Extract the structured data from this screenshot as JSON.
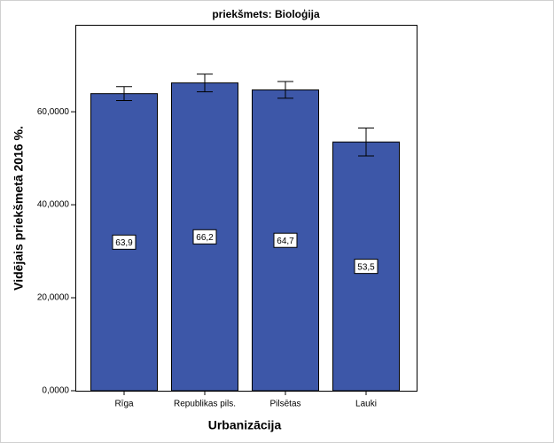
{
  "chart_data": {
    "type": "bar",
    "title": "priekšmets: Bioloģija",
    "x_label": "Urbanizācija",
    "y_label": "Vidējais priekšmetā 2016 %.",
    "categories": [
      "Rīga",
      "Republikas pils.",
      "Pilsētas",
      "Lauki"
    ],
    "values": [
      63.9,
      66.2,
      64.7,
      53.5
    ],
    "value_labels": [
      "63,9",
      "66,2",
      "64,7",
      "53,5"
    ],
    "errors": [
      1.5,
      1.9,
      1.8,
      3.0
    ],
    "color": "#3d57a8",
    "ylim": [
      0,
      78.7
    ],
    "yticks": [
      {
        "value": 0,
        "label": "0,0000"
      },
      {
        "value": 20,
        "label": "20,0000"
      },
      {
        "value": 40,
        "label": "40,0000"
      },
      {
        "value": 60,
        "label": "60,0000"
      }
    ]
  }
}
